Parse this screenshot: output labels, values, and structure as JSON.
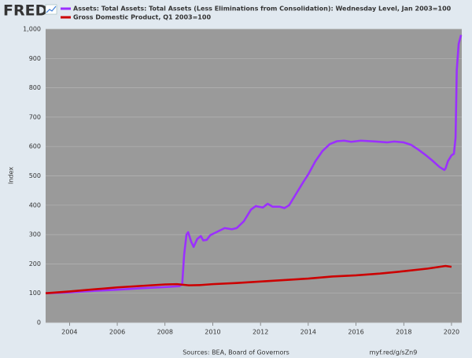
{
  "logo": "FRED",
  "chart_data": {
    "type": "line",
    "y_label": "Index",
    "source": "Sources: BEA, Board of Governors",
    "link": "myf.red/g/sZn9",
    "xlim": [
      2003,
      2020.43
    ],
    "xticks": [
      2004,
      2006,
      2008,
      2010,
      2012,
      2014,
      2016,
      2018,
      2020
    ],
    "ylim": [
      0,
      1000
    ],
    "yticks": [
      0,
      100,
      200,
      300,
      400,
      500,
      600,
      700,
      800,
      900,
      {
        "value": 1000,
        "label": "1,000"
      }
    ],
    "grid": true,
    "series": [
      {
        "name": "Assets: Total Assets: Total Assets (Less Eliminations from Consolidation): Wednesday Level, Jan 2003=100",
        "color": "#9b30ff",
        "x": [
          2003.0,
          2004.0,
          2005.0,
          2006.0,
          2007.0,
          2008.0,
          2008.6,
          2008.72,
          2008.8,
          2008.9,
          2008.97,
          2009.1,
          2009.2,
          2009.35,
          2009.5,
          2009.6,
          2009.75,
          2009.9,
          2010.2,
          2010.5,
          2010.8,
          2011.0,
          2011.3,
          2011.6,
          2011.8,
          2012.1,
          2012.3,
          2012.5,
          2012.8,
          2013.0,
          2013.2,
          2013.5,
          2013.8,
          2014.0,
          2014.3,
          2014.6,
          2014.9,
          2015.2,
          2015.5,
          2015.8,
          2016.2,
          2016.8,
          2017.3,
          2017.6,
          2018.0,
          2018.3,
          2018.6,
          2018.9,
          2019.2,
          2019.5,
          2019.7,
          2019.75,
          2019.85,
          2020.0,
          2020.1,
          2020.17,
          2020.22,
          2020.3,
          2020.4
        ],
        "values": [
          100,
          103,
          108,
          112,
          117,
          121,
          124,
          130,
          230,
          300,
          308,
          275,
          258,
          285,
          295,
          280,
          282,
          298,
          310,
          322,
          318,
          322,
          345,
          385,
          397,
          392,
          405,
          395,
          395,
          390,
          400,
          440,
          480,
          505,
          550,
          585,
          608,
          618,
          620,
          616,
          620,
          617,
          614,
          617,
          614,
          606,
          590,
          572,
          552,
          530,
          520,
          525,
          550,
          570,
          575,
          630,
          860,
          950,
          980
        ]
      },
      {
        "name": "Gross Domestic Product, Q1 2003=100",
        "color": "#cc0000",
        "x": [
          2003.0,
          2004.0,
          2005.0,
          2006.0,
          2007.0,
          2008.0,
          2008.5,
          2009.0,
          2009.5,
          2010.0,
          2011.0,
          2012.0,
          2013.0,
          2014.0,
          2015.0,
          2016.0,
          2017.0,
          2018.0,
          2019.0,
          2019.75,
          2020.0
        ],
        "values": [
          100,
          106,
          113,
          120,
          125,
          130,
          131,
          127,
          128,
          131,
          135,
          140,
          145,
          150,
          157,
          161,
          167,
          175,
          184,
          193,
          190
        ]
      }
    ]
  }
}
